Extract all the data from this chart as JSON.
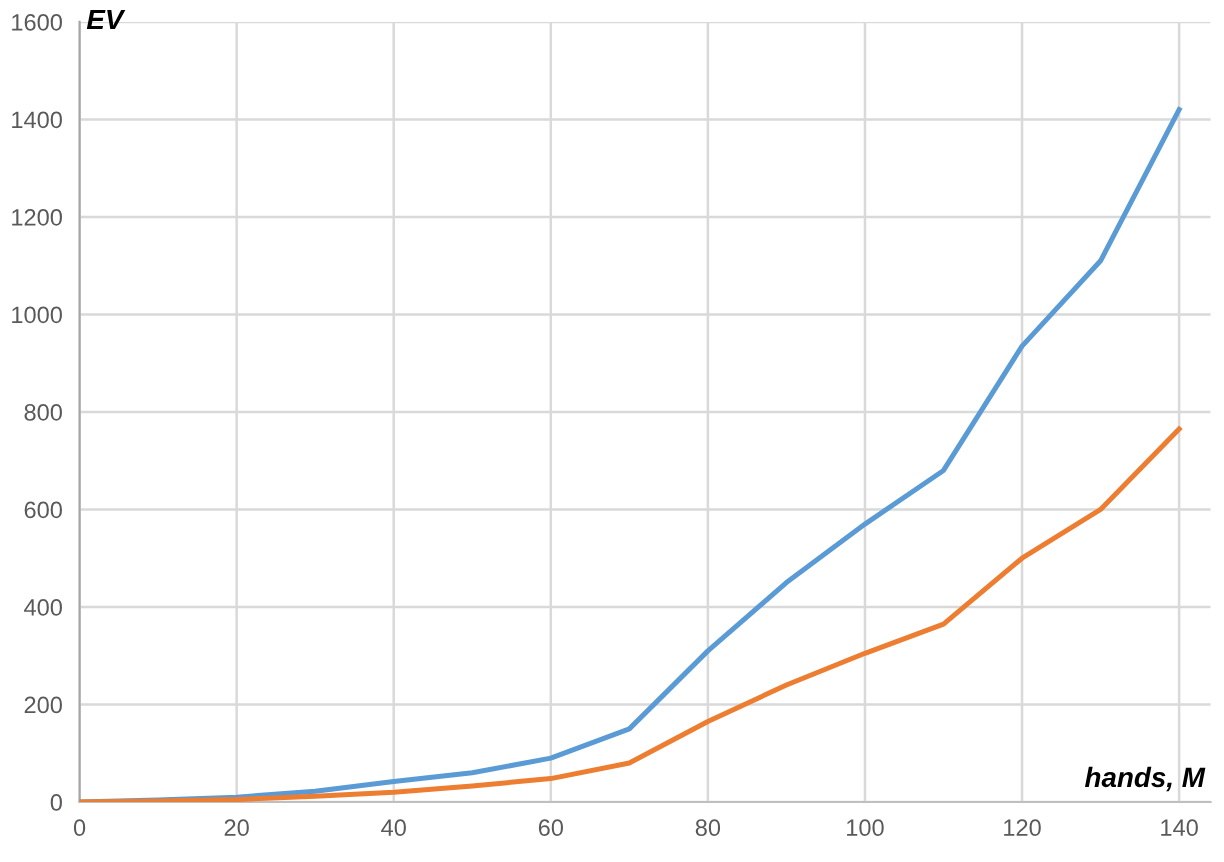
{
  "chart_data": {
    "type": "line",
    "xlabel": "hands, M",
    "ylabel": "EV",
    "x": [
      0,
      10,
      20,
      30,
      40,
      50,
      60,
      70,
      80,
      90,
      100,
      110,
      120,
      130,
      140
    ],
    "series": [
      {
        "color": "#5b9bd5",
        "values": [
          0,
          4,
          10,
          22,
          42,
          60,
          90,
          150,
          310,
          450,
          570,
          680,
          935,
          1110,
          1420
        ]
      },
      {
        "color": "#ed7d31",
        "values": [
          0,
          2,
          5,
          12,
          20,
          33,
          48,
          80,
          165,
          240,
          305,
          365,
          500,
          600,
          765
        ]
      }
    ],
    "xlim": [
      0,
      144
    ],
    "ylim": [
      0,
      1600
    ],
    "xticks": [
      0,
      20,
      40,
      60,
      80,
      100,
      120,
      140
    ],
    "yticks": [
      0,
      200,
      400,
      600,
      800,
      1000,
      1200,
      1400,
      1600
    ],
    "grid": true,
    "marker": "none",
    "line_style": "solid"
  }
}
